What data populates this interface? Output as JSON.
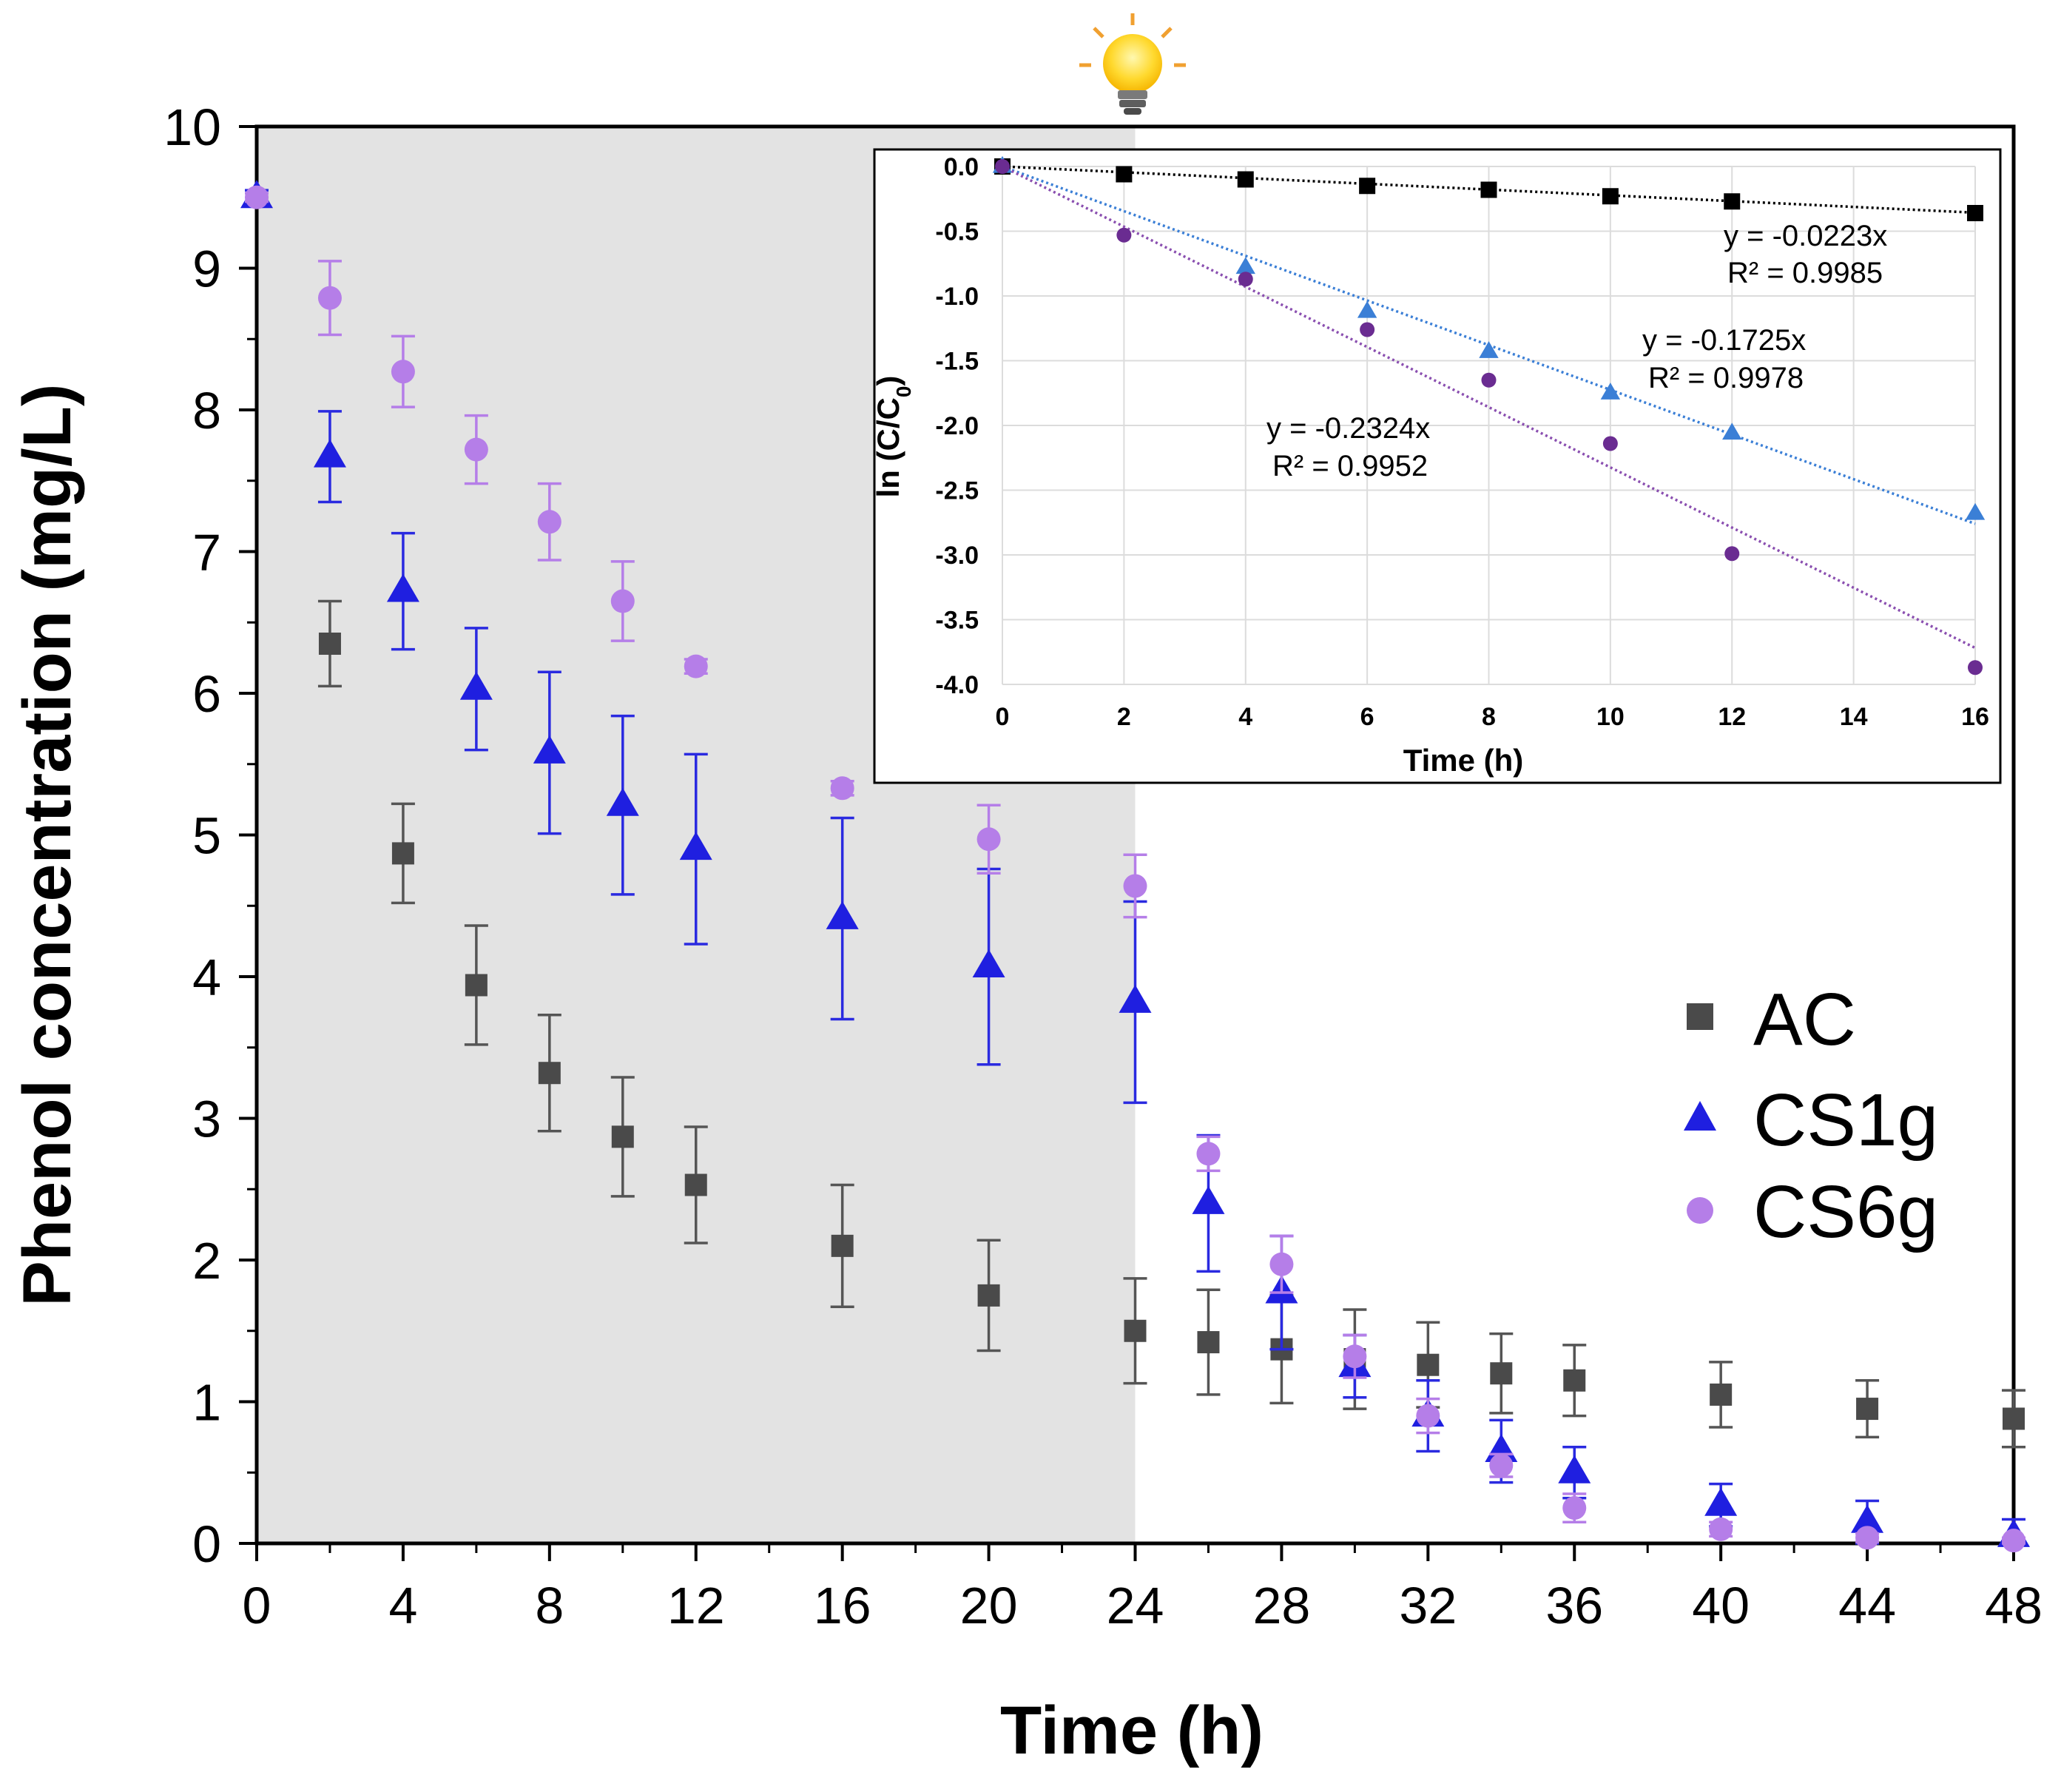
{
  "chart_data": [
    {
      "type": "scatter",
      "title": "",
      "xlabel": "Time (h)",
      "ylabel": "Phenol concentration (mg/L)",
      "xlim": [
        0,
        48
      ],
      "ylim": [
        0,
        10
      ],
      "xticks": [
        0,
        4,
        8,
        12,
        16,
        20,
        24,
        28,
        32,
        36,
        40,
        44,
        48
      ],
      "yticks": [
        0,
        1,
        2,
        3,
        4,
        5,
        6,
        7,
        8,
        9,
        10
      ],
      "shaded_region": {
        "x_from": 0,
        "x_to": 24,
        "color": "#e3e3e3",
        "meaning": "dark period before light on"
      },
      "light_icon": "light-bulb-icon",
      "legend": {
        "position": "right",
        "entries": [
          "AC",
          "CS1g",
          "CS6g"
        ]
      },
      "series": [
        {
          "name": "AC",
          "marker": "square",
          "color": "#4a4a4a",
          "error_color": "#555555",
          "x": [
            2,
            4,
            6,
            8,
            10,
            12,
            16,
            20,
            24,
            26,
            28,
            30,
            32,
            34,
            36,
            40,
            44,
            48
          ],
          "y": [
            6.35,
            4.87,
            3.94,
            3.32,
            2.87,
            2.53,
            2.1,
            1.75,
            1.5,
            1.42,
            1.37,
            1.3,
            1.26,
            1.2,
            1.15,
            1.05,
            0.95,
            0.88
          ],
          "err": [
            0.3,
            0.35,
            0.42,
            0.41,
            0.42,
            0.41,
            0.43,
            0.39,
            0.37,
            0.37,
            0.38,
            0.35,
            0.3,
            0.28,
            0.25,
            0.23,
            0.2,
            0.2
          ]
        },
        {
          "name": "CS1g",
          "marker": "triangle",
          "color": "#1f1fe0",
          "error_color": "#2a2ae0",
          "x": [
            0,
            2,
            4,
            6,
            8,
            10,
            12,
            16,
            20,
            24,
            26,
            28,
            30,
            32,
            34,
            36,
            40,
            44,
            48
          ],
          "y": [
            9.5,
            7.67,
            6.72,
            6.03,
            5.58,
            5.21,
            4.9,
            4.41,
            4.07,
            3.82,
            2.4,
            1.77,
            1.25,
            0.9,
            0.65,
            0.5,
            0.27,
            0.15,
            0.05
          ],
          "err": [
            0.05,
            0.32,
            0.41,
            0.43,
            0.57,
            0.63,
            0.67,
            0.71,
            0.69,
            0.71,
            0.48,
            0.4,
            0.22,
            0.25,
            0.22,
            0.18,
            0.15,
            0.15,
            0.12
          ]
        },
        {
          "name": "CS6g",
          "marker": "circle",
          "color": "#b57ee8",
          "error_color": "#b57ee8",
          "x": [
            0,
            2,
            4,
            6,
            8,
            10,
            12,
            16,
            20,
            24,
            26,
            28,
            30,
            32,
            34,
            36,
            40,
            44,
            48
          ],
          "y": [
            9.5,
            8.79,
            8.27,
            7.72,
            7.21,
            6.65,
            6.19,
            5.33,
            4.97,
            4.64,
            2.75,
            1.97,
            1.32,
            0.9,
            0.55,
            0.25,
            0.1,
            0.04,
            0.02
          ],
          "err": [
            0.03,
            0.26,
            0.25,
            0.24,
            0.27,
            0.28,
            0.05,
            0.05,
            0.24,
            0.22,
            0.12,
            0.2,
            0.15,
            0.12,
            0.08,
            0.1,
            0.05,
            0.03,
            0.02
          ]
        }
      ]
    },
    {
      "type": "scatter",
      "title": "",
      "xlabel": "Time (h)",
      "ylabel": "ln (C/C0)",
      "ylabel_main": "ln (C/C",
      "ylabel_sub": "0",
      "ylabel_close": ")",
      "xlim": [
        0,
        16
      ],
      "ylim": [
        -4.0,
        0.0
      ],
      "xticks": [
        0,
        2,
        4,
        6,
        8,
        10,
        12,
        14,
        16
      ],
      "yticks": [
        0.0,
        -0.5,
        -1.0,
        -1.5,
        -2.0,
        -2.5,
        -3.0,
        -3.5,
        -4.0
      ],
      "ytick_labels": [
        "0.0",
        "-0.5",
        "-1.0",
        "-1.5",
        "-2.0",
        "-2.5",
        "-3.0",
        "-3.5",
        "-4.0"
      ],
      "series": [
        {
          "name": "AC",
          "marker": "square",
          "color": "#000000",
          "trend_color": "#000000",
          "slope": -0.0223,
          "equation": "y = -0.0223x",
          "r2": "R² = 0.9985",
          "x": [
            0,
            2,
            4,
            6,
            8,
            10,
            12,
            16
          ],
          "y": [
            0.0,
            -0.06,
            -0.1,
            -0.15,
            -0.18,
            -0.23,
            -0.27,
            -0.36
          ]
        },
        {
          "name": "CS1g",
          "marker": "triangle",
          "color": "#3b7fd6",
          "trend_color": "#3b7fd6",
          "slope": -0.1725,
          "equation": "y = -0.1725x",
          "r2": "R² = 0.9978",
          "x": [
            0,
            4,
            6,
            8,
            10,
            12,
            16
          ],
          "y": [
            0.0,
            -0.78,
            -1.12,
            -1.43,
            -1.75,
            -2.06,
            -2.68
          ]
        },
        {
          "name": "CS6g",
          "marker": "circle",
          "color": "#6a2c91",
          "trend_color": "#8a4fb0",
          "slope": -0.2324,
          "equation": "y = -0.2324x",
          "r2": "R² = 0.9952",
          "x": [
            0,
            2,
            4,
            6,
            8,
            10,
            12,
            16
          ],
          "y": [
            0.0,
            -0.53,
            -0.87,
            -1.26,
            -1.65,
            -2.14,
            -2.99,
            -3.87
          ]
        }
      ]
    }
  ]
}
